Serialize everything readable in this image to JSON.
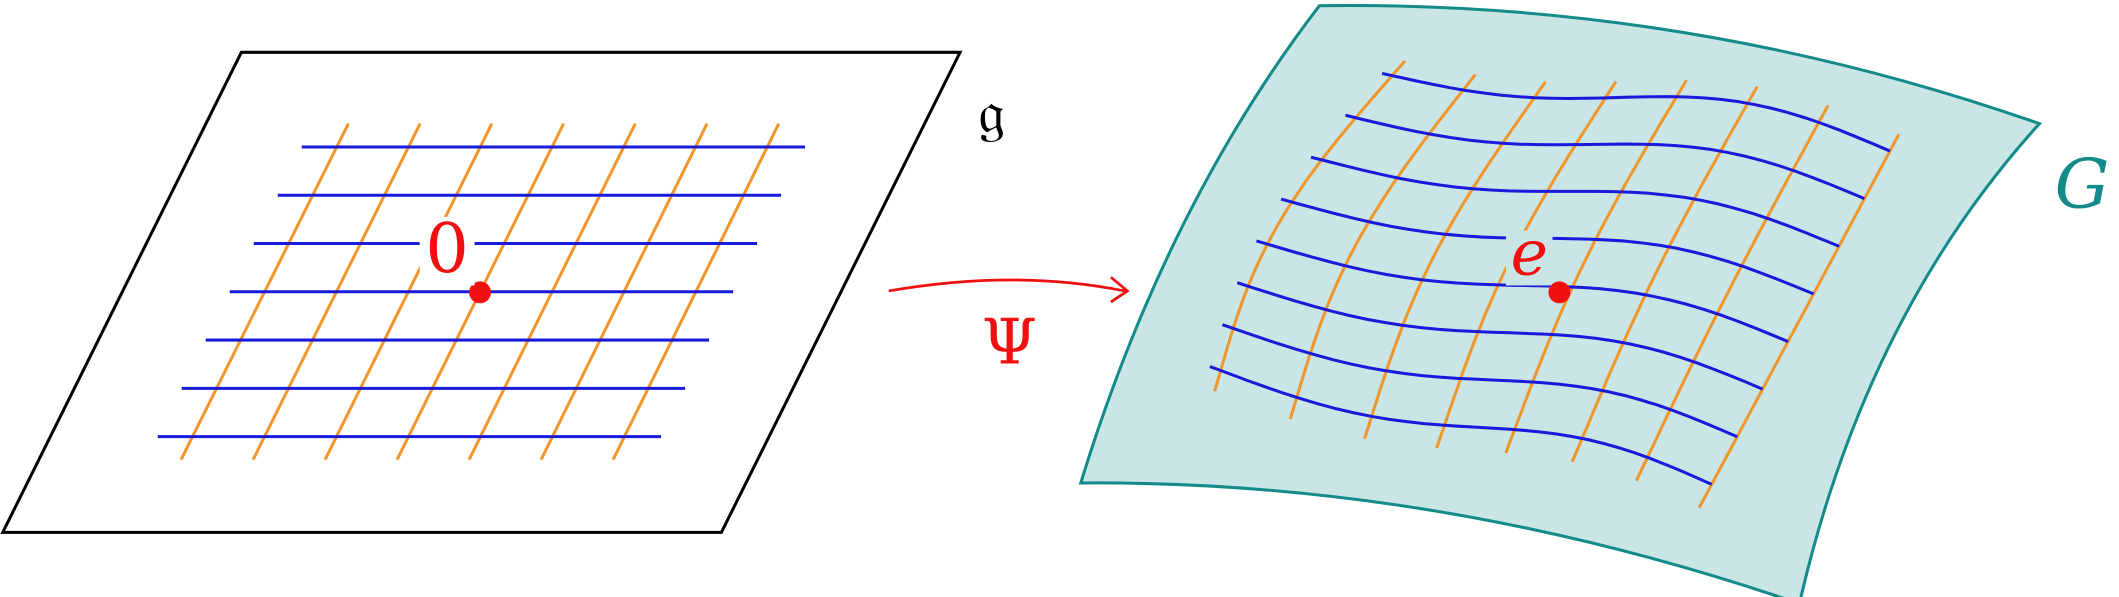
{
  "labels": {
    "lie_algebra": "𝔤",
    "origin": "0",
    "map": "Ψ",
    "identity": "e",
    "group": "G"
  }
}
